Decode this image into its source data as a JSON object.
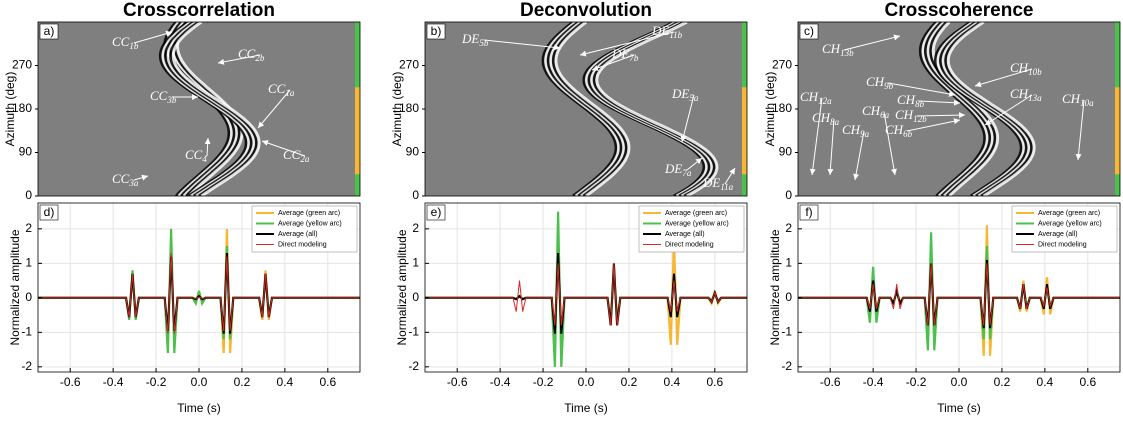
{
  "chart_data": [
    {
      "type": "image",
      "title": "Crosscorrelation",
      "panel_label": "a)",
      "ylabel": "Azimuth (deg)",
      "xlim": [
        -0.75,
        0.75
      ],
      "ylim": [
        0,
        360
      ],
      "yticks": [
        0,
        90,
        180,
        270
      ],
      "annotations": [
        {
          "text": "CC",
          "sub": "1b"
        },
        {
          "text": "CC",
          "sub": "2b"
        },
        {
          "text": "CC",
          "sub": "3b"
        },
        {
          "text": "CC",
          "sub": "1a"
        },
        {
          "text": "CC",
          "sub": "4"
        },
        {
          "text": "CC",
          "sub": "2a"
        },
        {
          "text": "CC",
          "sub": "3a"
        }
      ]
    },
    {
      "type": "image",
      "title": "Deconvolution",
      "panel_label": "b)",
      "ylabel": "Azimuth (deg)",
      "xlim": [
        -0.75,
        0.75
      ],
      "ylim": [
        0,
        360
      ],
      "yticks": [
        0,
        90,
        180,
        270
      ],
      "annotations": [
        {
          "text": "DE",
          "sub": "5b"
        },
        {
          "text": "DE",
          "sub": "11b"
        },
        {
          "text": "DE",
          "sub": "7b"
        },
        {
          "text": "DE",
          "sub": "5a"
        },
        {
          "text": "DE",
          "sub": "7a"
        },
        {
          "text": "DE",
          "sub": "11a"
        }
      ]
    },
    {
      "type": "image",
      "title": "Crosscoherence",
      "panel_label": "c)",
      "ylabel": "Azimuth (deg)",
      "xlim": [
        -0.75,
        0.75
      ],
      "ylim": [
        0,
        360
      ],
      "yticks": [
        0,
        90,
        180,
        270
      ],
      "annotations": [
        {
          "text": "CH",
          "sub": "13b"
        },
        {
          "text": "CH",
          "sub": "10b"
        },
        {
          "text": "CH",
          "sub": "9b"
        },
        {
          "text": "CH",
          "sub": "8b"
        },
        {
          "text": "CH",
          "sub": "12a"
        },
        {
          "text": "CH",
          "sub": "6a"
        },
        {
          "text": "CH",
          "sub": "12b"
        },
        {
          "text": "CH",
          "sub": "13a"
        },
        {
          "text": "CH",
          "sub": "10a"
        },
        {
          "text": "CH",
          "sub": "8a"
        },
        {
          "text": "CH",
          "sub": "9a"
        },
        {
          "text": "CH",
          "sub": "6b"
        }
      ]
    },
    {
      "type": "line",
      "panel_label": "d)",
      "xlabel": "Time (s)",
      "ylabel": "Normalized amplitude",
      "xlim": [
        -0.75,
        0.75
      ],
      "ylim": [
        -2.15,
        2.75
      ],
      "xticks": [
        -0.6,
        -0.4,
        -0.2,
        {
          "value": 0,
          "label": "0.0"
        },
        0.2,
        0.4,
        0.6
      ],
      "yticks": [
        -2,
        -1,
        0,
        1,
        2
      ],
      "grid": true,
      "legend": "upper right",
      "x": [
        -0.75,
        -0.34,
        -0.325,
        -0.31,
        -0.295,
        -0.28,
        -0.16,
        -0.145,
        -0.13,
        -0.115,
        -0.1,
        -0.03,
        -0.015,
        0,
        0.015,
        0.03,
        0.1,
        0.115,
        0.13,
        0.145,
        0.16,
        0.28,
        0.295,
        0.31,
        0.325,
        0.34,
        0.75
      ],
      "series": [
        {
          "name": "Average (green arc)",
          "color": "#f7b733",
          "values": [
            0,
            0,
            -0.48,
            0.6,
            -0.48,
            0,
            0,
            -1.12,
            1.4,
            -1.12,
            0,
            0,
            -0.08,
            0.1,
            -0.08,
            0,
            0,
            -1.6,
            2,
            -1.6,
            0,
            0,
            -0.64,
            0.8,
            -0.64,
            0,
            0
          ]
        },
        {
          "name": "Average (yellow arc)",
          "color": "#4cc04c",
          "values": [
            0,
            0,
            -0.64,
            0.8,
            -0.64,
            0,
            0,
            -1.6,
            2,
            -1.6,
            0,
            0,
            -0.16,
            0.2,
            -0.16,
            0,
            0,
            -1.2,
            1.5,
            -1.2,
            0,
            0,
            -0.48,
            0.6,
            -0.48,
            0,
            0
          ]
        },
        {
          "name": "Average (all)",
          "color": "#000000",
          "values": [
            0,
            0,
            -0.56,
            0.7,
            -0.56,
            0,
            0,
            -0.96,
            1.2,
            -0.96,
            0,
            0,
            -0.04,
            0.05,
            -0.04,
            0,
            0,
            -1.04,
            1.3,
            -1.04,
            0,
            0,
            -0.56,
            0.7,
            -0.56,
            0,
            0
          ]
        },
        {
          "name": "Direct modeling",
          "color": "#d62728",
          "values": [
            0,
            0,
            -0.56,
            0.7,
            -0.56,
            0,
            0,
            -1.04,
            1.3,
            -1.04,
            0,
            0,
            -0.016,
            0.02,
            -0.016,
            0,
            0,
            -0.96,
            1.2,
            -0.96,
            0,
            0,
            -0.56,
            0.7,
            -0.56,
            0,
            0
          ]
        }
      ]
    },
    {
      "type": "line",
      "panel_label": "e)",
      "xlabel": "Time (s)",
      "ylabel": "Normalized amplitude",
      "xlim": [
        -0.75,
        0.75
      ],
      "ylim": [
        -2.15,
        2.75
      ],
      "xticks": [
        -0.6,
        -0.4,
        -0.2,
        {
          "value": 0,
          "label": "0.0"
        },
        0.2,
        0.4,
        0.6
      ],
      "yticks": [
        -2,
        -1,
        0,
        1,
        2
      ],
      "grid": true,
      "legend": "upper right",
      "x": [
        -0.75,
        -0.34,
        -0.325,
        -0.31,
        -0.295,
        -0.28,
        -0.16,
        -0.145,
        -0.13,
        -0.115,
        -0.1,
        0.1,
        0.115,
        0.13,
        0.145,
        0.16,
        0.38,
        0.395,
        0.41,
        0.425,
        0.44,
        0.57,
        0.585,
        0.6,
        0.615,
        0.63,
        0.75
      ],
      "series": [
        {
          "name": "Average (green arc)",
          "color": "#f7b733",
          "values": [
            0,
            0,
            -0.04,
            0.05,
            -0.04,
            0,
            0,
            -1.04,
            1.3,
            -1.04,
            0,
            0,
            -0.8,
            1,
            -0.8,
            0,
            0,
            -1.36,
            1.7,
            -1.36,
            0,
            0,
            -0.16,
            0.2,
            -0.16,
            0,
            0
          ]
        },
        {
          "name": "Average (yellow arc)",
          "color": "#4cc04c",
          "values": [
            0,
            0,
            -0.04,
            0.05,
            -0.04,
            0,
            0,
            -2,
            2.5,
            -2,
            0,
            0,
            -0.64,
            0.8,
            -0.64,
            0,
            0,
            -0.48,
            0.6,
            -0.48,
            0,
            0,
            -0.08,
            0.1,
            -0.08,
            0,
            0
          ]
        },
        {
          "name": "Average (all)",
          "color": "#000000",
          "values": [
            0,
            0,
            -0.04,
            0.05,
            -0.04,
            0,
            0,
            -1.04,
            1.3,
            -1.04,
            0,
            0,
            -0.8,
            1,
            -0.8,
            0,
            0,
            -0.56,
            0.7,
            -0.56,
            0,
            0,
            -0.12,
            0.15,
            -0.12,
            0,
            0
          ]
        },
        {
          "name": "Direct modeling",
          "color": "#d62728",
          "values": [
            0,
            0,
            -0.4,
            0.5,
            -0.4,
            0,
            0,
            -0.8,
            1,
            -0.8,
            0,
            0,
            -0.8,
            1,
            -0.8,
            0,
            0,
            -0.4,
            0.5,
            -0.4,
            0,
            0,
            -0.12,
            0.15,
            -0.12,
            0,
            0
          ]
        }
      ]
    },
    {
      "type": "line",
      "panel_label": "f)",
      "xlabel": "Time (s)",
      "ylabel": "Normalized amplitude",
      "xlim": [
        -0.75,
        0.75
      ],
      "ylim": [
        -2.15,
        2.75
      ],
      "xticks": [
        -0.6,
        -0.4,
        -0.2,
        {
          "value": 0,
          "label": "0.0"
        },
        0.2,
        0.4,
        0.6
      ],
      "yticks": [
        -2,
        -1,
        0,
        1,
        2
      ],
      "grid": true,
      "legend": "upper right",
      "x": [
        -0.75,
        -0.43,
        -0.415,
        -0.4,
        -0.385,
        -0.37,
        -0.32,
        -0.305,
        -0.29,
        -0.275,
        -0.26,
        -0.16,
        -0.145,
        -0.13,
        -0.115,
        -0.1,
        0.1,
        0.115,
        0.13,
        0.145,
        0.16,
        0.27,
        0.285,
        0.3,
        0.315,
        0.33,
        0.38,
        0.395,
        0.41,
        0.425,
        0.44,
        0.75
      ],
      "series": [
        {
          "name": "Average (green arc)",
          "color": "#f7b733",
          "values": [
            0,
            0,
            -0.32,
            0.4,
            -0.32,
            0,
            0,
            -0.16,
            0.2,
            -0.16,
            0,
            0,
            -1.2,
            1.5,
            -1.2,
            0,
            0,
            -1.68,
            2.1,
            -1.68,
            0,
            0,
            -0.4,
            0.5,
            -0.4,
            0,
            0,
            -0.48,
            0.6,
            -0.48,
            0,
            0
          ]
        },
        {
          "name": "Average (yellow arc)",
          "color": "#4cc04c",
          "values": [
            0,
            0,
            -0.72,
            0.9,
            -0.72,
            0,
            0,
            -0.16,
            0.2,
            -0.16,
            0,
            0,
            -1.52,
            1.9,
            -1.52,
            0,
            0,
            -1.2,
            1.5,
            -1.2,
            0,
            0,
            -0.32,
            0.4,
            -0.32,
            0,
            0,
            -0.24,
            0.3,
            -0.24,
            0,
            0
          ]
        },
        {
          "name": "Average (all)",
          "color": "#000000",
          "values": [
            0,
            0,
            -0.4,
            0.5,
            -0.4,
            0,
            0,
            -0.16,
            0.2,
            -0.16,
            0,
            0,
            -0.8,
            1,
            -0.8,
            0,
            0,
            -0.88,
            1.1,
            -0.88,
            0,
            0,
            -0.32,
            0.4,
            -0.32,
            0,
            0,
            -0.32,
            0.4,
            -0.32,
            0,
            0
          ]
        },
        {
          "name": "Direct modeling",
          "color": "#d62728",
          "values": [
            0,
            0,
            -0.32,
            0.4,
            -0.32,
            0,
            0,
            -0.32,
            0.4,
            -0.32,
            0,
            0,
            -0.8,
            1,
            -0.8,
            0,
            0,
            -0.8,
            1,
            -0.8,
            0,
            0,
            -0.32,
            0.4,
            -0.32,
            0,
            0,
            -0.24,
            0.3,
            -0.24,
            0,
            0
          ]
        }
      ]
    }
  ]
}
